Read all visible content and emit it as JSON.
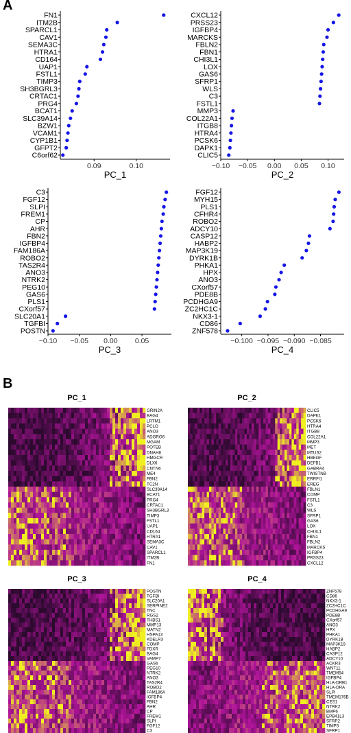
{
  "panel_labels": {
    "a": "A",
    "b": "B"
  },
  "colors": {
    "dot": "#1515e6",
    "heat_low": "#2b0a2e",
    "heat_mid": "#b0149a",
    "heat_high": "#f0f020"
  },
  "chart_data": [
    {
      "type": "scatter",
      "panel": "A",
      "xlabel": "PC_1",
      "xlim": [
        0.082,
        0.108
      ],
      "ticks": [
        0.09,
        0.1
      ],
      "tick_labels": [
        "0.09",
        "0.10"
      ],
      "genes": [
        "FN1",
        "ITM2B",
        "SPARCL1",
        "CAV1",
        "SEMA3C",
        "HTRA1",
        "CD164",
        "UAP1",
        "FSTL1",
        "TIMP3",
        "SH3BGRL3",
        "CRTAC1",
        "PRG4",
        "BCAT1",
        "SLC39A14",
        "BZW1",
        "VCAM1",
        "CYP1B1",
        "GFPT2",
        "C6orf62"
      ],
      "values": [
        0.1065,
        0.0955,
        0.093,
        0.0928,
        0.0923,
        0.092,
        0.0915,
        0.0883,
        0.0879,
        0.0866,
        0.0864,
        0.0862,
        0.0858,
        0.0848,
        0.0844,
        0.084,
        0.0838,
        0.0836,
        0.0834,
        0.0826
      ]
    },
    {
      "type": "scatter",
      "panel": "A",
      "xlabel": "PC_2",
      "xlim": [
        -0.1,
        0.13
      ],
      "ticks": [
        -0.1,
        -0.05,
        0.0,
        0.05,
        0.1
      ],
      "tick_labels": [
        "−0.10",
        "−0.05",
        "0.00",
        "0.05",
        "0.10"
      ],
      "genes": [
        "CXCL12",
        "PRSS23",
        "IGFBP4",
        "MARCKS",
        "FBLN2",
        "FBN1",
        "CHI3L1",
        "LOX",
        "GAS6",
        "SFRP1",
        "WLS",
        "C3",
        "FSTL1",
        "MMP3",
        "COL22A1",
        "ITGB8",
        "HTRA4",
        "PCSK6",
        "DAPK1",
        "CLIC5"
      ],
      "values": [
        0.12,
        0.11,
        0.1,
        0.098,
        0.092,
        0.091,
        0.09,
        0.089,
        0.088,
        0.087,
        0.086,
        0.085,
        0.084,
        -0.077,
        -0.079,
        -0.08,
        -0.081,
        -0.082,
        -0.083,
        -0.085
      ]
    },
    {
      "type": "scatter",
      "panel": "A",
      "xlabel": "PC_3",
      "xlim": [
        -0.1,
        0.097
      ],
      "ticks": [
        -0.1,
        -0.05,
        0.0,
        0.05
      ],
      "tick_labels": [
        "−0.10",
        "−0.05",
        "0.00",
        "0.05"
      ],
      "genes": [
        "C3",
        "FGF12",
        "SLPI",
        "FREM1",
        "CP",
        "AHR",
        "FBN2",
        "IGFBP4",
        "FAM186A",
        "ROBO2",
        "TAS2R4",
        "ANO3",
        "NTRK2",
        "PEG10",
        "GAS6",
        "PLS1",
        "CXorf57",
        "SLC20A1",
        "TGFBI",
        "POSTN"
      ],
      "values": [
        0.089,
        0.087,
        0.085,
        0.084,
        0.082,
        0.081,
        0.08,
        0.079,
        0.078,
        0.077,
        0.076,
        0.075,
        0.074,
        0.073,
        0.072,
        0.071,
        0.07,
        -0.072,
        -0.085,
        -0.092
      ]
    },
    {
      "type": "scatter",
      "panel": "A",
      "xlabel": "PC_4",
      "xlim": [
        -0.104,
        -0.0805
      ],
      "ticks": [
        -0.1,
        -0.095,
        -0.09,
        -0.085
      ],
      "tick_labels": [
        "−0.100",
        "−0.095",
        "−0.090",
        "−0.085"
      ],
      "genes": [
        "FGF12",
        "MYH15",
        "PLS1",
        "CFHR4",
        "ROBO2",
        "ADCY10",
        "CASP12",
        "HABP2",
        "MAP3K19",
        "DYRK1B",
        "PHKA1",
        "HPX",
        "ANO3",
        "CXorf57",
        "PDE8B",
        "PCDHGA9",
        "ZC2HC1C",
        "NKX3-1",
        "CD86",
        "ZNF578"
      ],
      "values": [
        -0.0815,
        -0.0822,
        -0.0824,
        -0.0825,
        -0.0826,
        -0.0832,
        -0.0871,
        -0.0873,
        -0.0877,
        -0.0885,
        -0.0919,
        -0.0925,
        -0.0929,
        -0.0935,
        -0.0937,
        -0.0951,
        -0.0955,
        -0.0965,
        -0.1003,
        -0.1027
      ]
    },
    {
      "type": "heatmap",
      "panel": "B",
      "title": "PC_1",
      "genes": [
        "GRIN2A",
        "BAG4",
        "LRTM1",
        "PCLO",
        "ANO3",
        "ADGRG6",
        "MGAM",
        "POTEB",
        "DNAH8",
        "HMGCR",
        "DLX6",
        "CNTN6",
        "ME4",
        "FBN2",
        "TC2N",
        "SLC39A14",
        "BCAT1",
        "PRG4",
        "CRTAC1",
        "SH3BGRL3",
        "TIMP3",
        "FSTL1",
        "UAP1",
        "CD164",
        "HTRA1",
        "SEMA3C",
        "CAV1",
        "SPARCL1",
        "ITM2B",
        "FN1"
      ],
      "split_after": 15,
      "yellow_side": "right"
    },
    {
      "type": "heatmap",
      "panel": "B",
      "title": "PC_2",
      "genes": [
        "CLIC5",
        "DAPK1",
        "PCSK6",
        "HTRA4",
        "ITGB8",
        "COL22A1",
        "MMP3",
        "MET",
        "MTUS2",
        "HBEGF",
        "DEFB1",
        "GABRA4",
        "TWISTNB",
        "ERRFI1",
        "EREG",
        "FBLN1",
        "COMP",
        "FSTL1",
        "C3",
        "WLS",
        "SFRP1",
        "GAS6",
        "LOX",
        "CHI3L1",
        "FBN1",
        "FBLN2",
        "MARCKS",
        "IGFBP4",
        "PRSS23",
        "CXCL12"
      ],
      "split_after": 15,
      "yellow_side": "right"
    },
    {
      "type": "heatmap",
      "panel": "B",
      "title": "PC_3",
      "genes": [
        "POSTN",
        "TGFBI",
        "SLC20A1",
        "SERPINE2",
        "TNC",
        "RGS2",
        "THBS1",
        "MMP13",
        "MATN2",
        "HSPA13",
        "KDELR3",
        "COMP",
        "FDXR",
        "BAG4",
        "VAMP7",
        "GAS6",
        "PEG10",
        "NTRK2",
        "ANO3",
        "TAS2R4",
        "ROBO2",
        "FAM186A",
        "IGFBP4",
        "FBN2",
        "AHR",
        "CP",
        "FREM1",
        "SLPI",
        "FGF12",
        "C3"
      ],
      "split_after": 15,
      "yellow_side": "right"
    },
    {
      "type": "heatmap",
      "panel": "B",
      "title": "PC_4",
      "genes": [
        "ZNF578",
        "CD86",
        "NKX3-1",
        "ZC2HC1C",
        "PCDHGA9",
        "PDE8B",
        "CXorf57",
        "ANO3",
        "HPX",
        "PHKA1",
        "DYRK1B",
        "MAP3K19",
        "HABP2",
        "CASP12",
        "ADCY10",
        "ACKR3",
        "WNT11",
        "TMEM54",
        "IGFBP4",
        "HLA-DRB1",
        "HLA-DRA",
        "SLPI",
        "TMEM176B",
        "CES1",
        "NTRK2",
        "BMP6",
        "EPB41L3",
        "SFRP2",
        "TIMP3",
        "SFRP1"
      ],
      "split_after": 15,
      "yellow_side": "left"
    }
  ]
}
